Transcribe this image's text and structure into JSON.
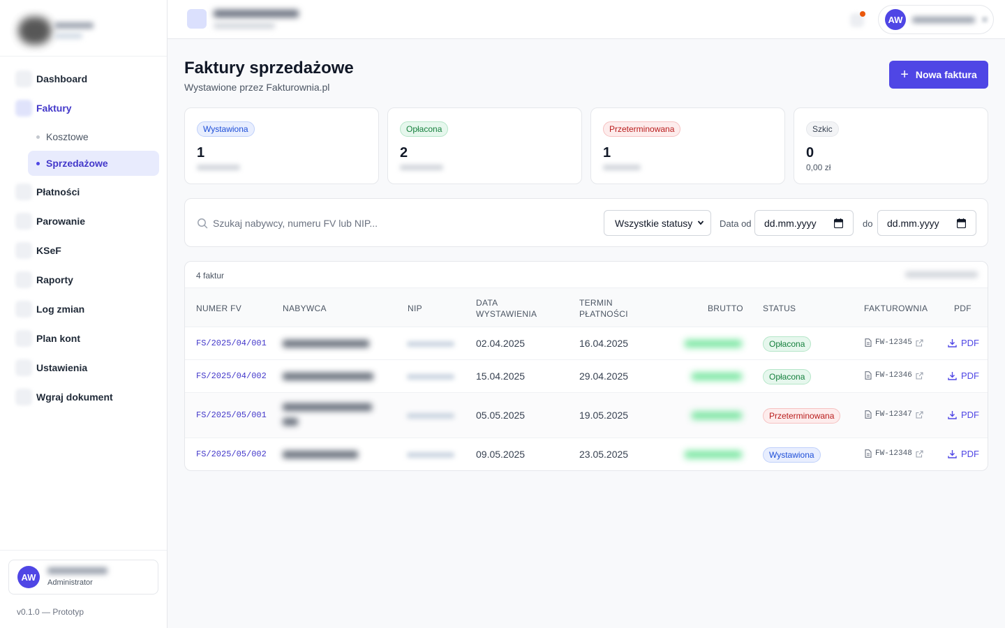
{
  "sidebar": {
    "nav": [
      {
        "label": "Dashboard"
      },
      {
        "label": "Faktury"
      },
      {
        "label": "Płatności"
      },
      {
        "label": "Parowanie"
      },
      {
        "label": "KSeF"
      },
      {
        "label": "Raporty"
      },
      {
        "label": "Log zmian"
      },
      {
        "label": "Plan kont"
      },
      {
        "label": "Ustawienia"
      },
      {
        "label": "Wgraj dokument"
      }
    ],
    "sub": [
      {
        "label": "Kosztowe"
      },
      {
        "label": "Sprzedażowe"
      }
    ],
    "user": {
      "initials": "AW",
      "role": "Administrator"
    },
    "version": "v0.1.0 — Prototyp"
  },
  "topbar": {
    "user_initials": "AW"
  },
  "page": {
    "title": "Faktury sprzedażowe",
    "subtitle": "Wystawione przez Fakturownia.pl",
    "new_button": "Nowa faktura"
  },
  "stats": [
    {
      "status": "Wystawiona",
      "count": "1",
      "color": "#1d4ed8"
    },
    {
      "status": "Opłacona",
      "count": "2",
      "color": "#15803d"
    },
    {
      "status": "Przeterminowana",
      "count": "1",
      "color": "#b91c1c"
    },
    {
      "status": "Szkic",
      "count": "0",
      "amount": "0,00 zł",
      "color": "#374151"
    }
  ],
  "filters": {
    "search_placeholder": "Szukaj nabywcy, numeru FV lub NIP...",
    "status_value": "Wszystkie statusy",
    "date_from_label": "Data od",
    "date_from_value": "dd.mm.yyyy",
    "date_to_label": "do",
    "date_to_value": "dd.mm.yyyy"
  },
  "table": {
    "count_label": "4 faktur",
    "headers": {
      "numer": "NUMER FV",
      "nabywca": "NABYWCA",
      "nip": "NIP",
      "data1": "DATA",
      "data2": "WYSTAWIENIA",
      "termin1": "TERMIN",
      "termin2": "PŁATNOŚCI",
      "brutto": "BRUTTO",
      "status": "STATUS",
      "fakturownia": "FAKTUROWNIA",
      "pdf": "PDF"
    },
    "rows": [
      {
        "numer": "FS/2025/04/001",
        "data": "02.04.2025",
        "termin": "16.04.2025",
        "status": "Opłacona",
        "fw": "FW-12345",
        "pdf": "PDF"
      },
      {
        "numer": "FS/2025/04/002",
        "data": "15.04.2025",
        "termin": "29.04.2025",
        "status": "Opłacona",
        "fw": "FW-12346",
        "pdf": "PDF"
      },
      {
        "numer": "FS/2025/05/001",
        "data": "05.05.2025",
        "termin": "19.05.2025",
        "status": "Przeterminowana",
        "fw": "FW-12347",
        "pdf": "PDF"
      },
      {
        "numer": "FS/2025/05/002",
        "data": "09.05.2025",
        "termin": "23.05.2025",
        "status": "Wystawiona",
        "fw": "FW-12348",
        "pdf": "PDF"
      }
    ]
  },
  "colors": {
    "accent": "#4f46e5",
    "notification_dot": "#ea580c"
  }
}
